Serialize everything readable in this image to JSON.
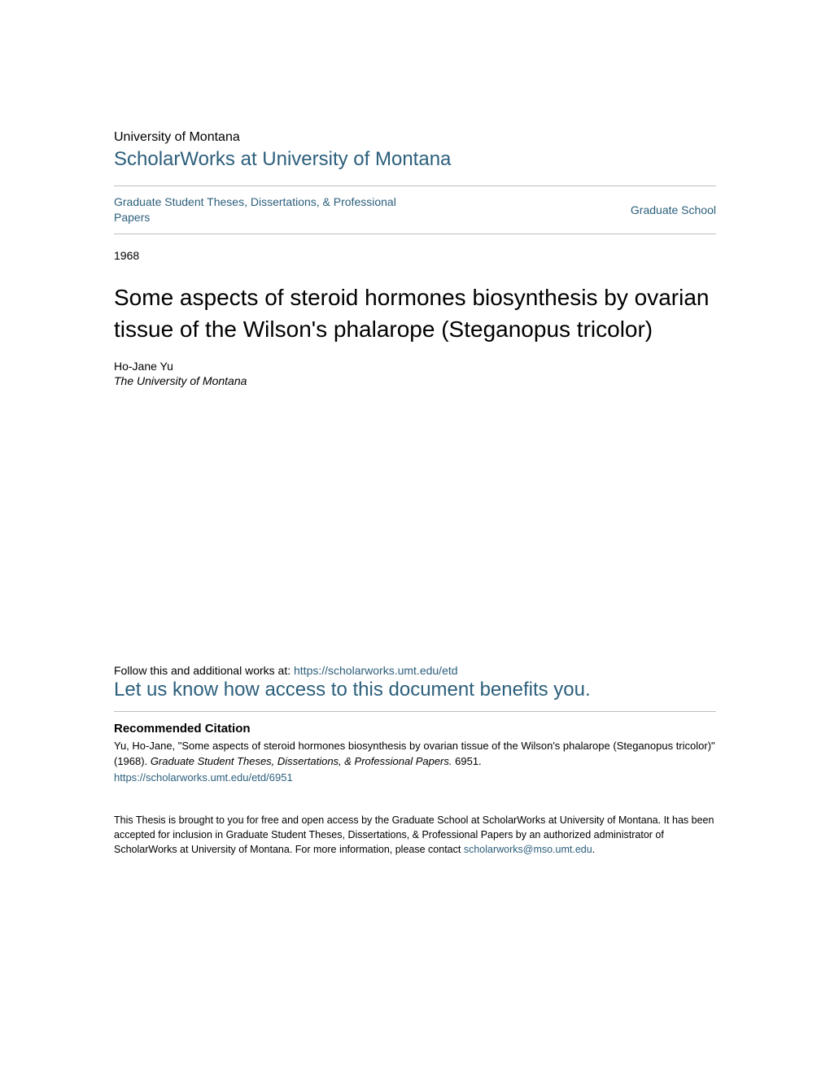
{
  "colors": {
    "link": "#2c5f7c",
    "text": "#000000",
    "rule": "#bfbfbf",
    "background": "#ffffff"
  },
  "fonts": {
    "body_family": "Verdana, Geneva, sans-serif",
    "university_size": 16,
    "repo_size": 24,
    "nav_size": 14,
    "year_size": 14,
    "title_size": 28,
    "author_size": 14,
    "follow_size": 14,
    "benefit_size": 24,
    "rec_head_size": 15,
    "citation_size": 13,
    "footer_size": 12.5
  },
  "header": {
    "university": "University of Montana",
    "repository": "ScholarWorks at University of Montana"
  },
  "nav": {
    "left": "Graduate Student Theses, Dissertations, & Professional Papers",
    "right": "Graduate School"
  },
  "year": "1968",
  "title": "Some aspects of steroid hormones biosynthesis by ovarian tissue of the Wilson's phalarope (Steganopus tricolor)",
  "author": {
    "name": "Ho-Jane Yu",
    "affiliation": "The University of Montana"
  },
  "follow": {
    "prefix": "Follow this and additional works at: ",
    "url": "https://scholarworks.umt.edu/etd"
  },
  "benefit": "Let us know how access to this document benefits you.",
  "recommended": {
    "heading": "Recommended Citation",
    "text_pre": "Yu, Ho-Jane, \"Some aspects of steroid hormones biosynthesis by ovarian tissue of the Wilson's phalarope (Steganopus tricolor)\" (1968). ",
    "text_ital": "Graduate Student Theses, Dissertations, & Professional Papers.",
    "text_post": " 6951.",
    "link": "https://scholarworks.umt.edu/etd/6951"
  },
  "footer": {
    "text": "This Thesis is brought to you for free and open access by the Graduate School at ScholarWorks at University of Montana. It has been accepted for inclusion in Graduate Student Theses, Dissertations, & Professional Papers by an authorized administrator of ScholarWorks at University of Montana. For more information, please contact ",
    "email": "scholarworks@mso.umt.edu",
    "period": "."
  }
}
